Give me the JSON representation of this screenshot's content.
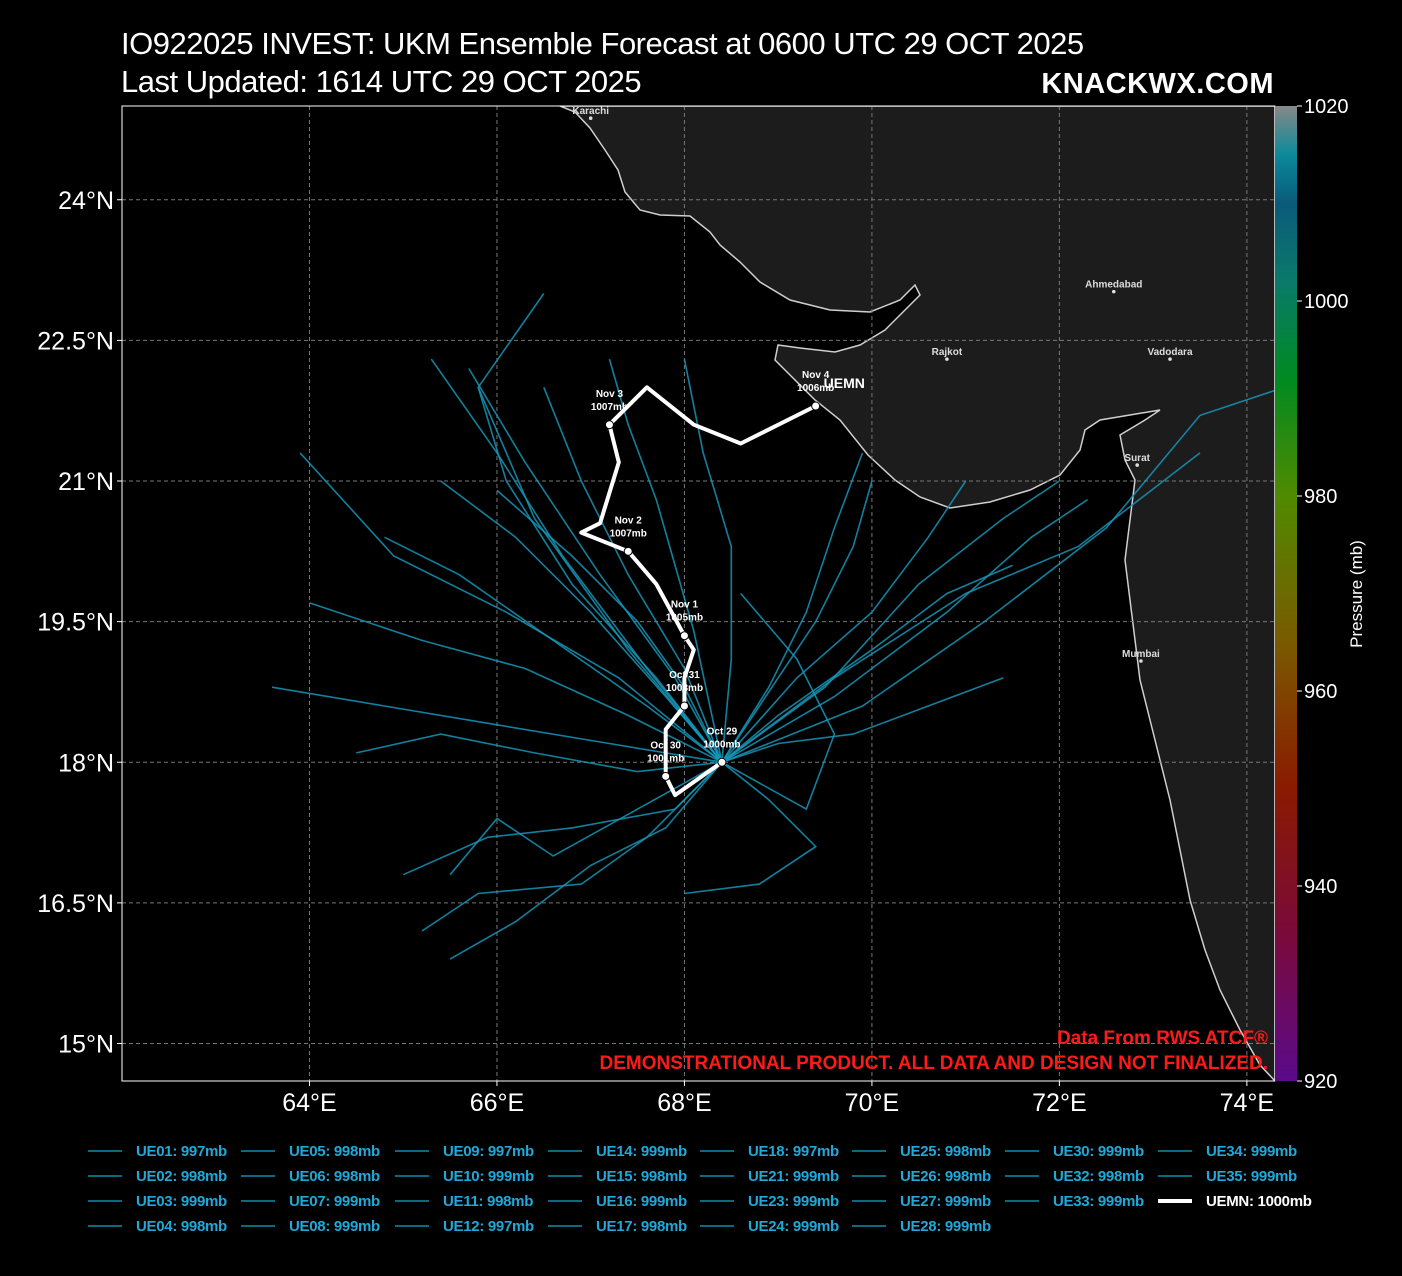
{
  "header": {
    "title": "IO922025 INVEST: UKM Ensemble Forecast at 0600 UTC 29 OCT 2025",
    "subtitle": "Last Updated: 1614 UTC 29 OCT 2025",
    "brand": "KNACKWX.COM"
  },
  "map": {
    "lon_range": [
      62.0,
      74.3
    ],
    "lat_range": [
      14.6,
      25.0
    ],
    "lat_ticks": [
      {
        "value": 24.0,
        "label": "24°N"
      },
      {
        "value": 22.5,
        "label": "22.5°N"
      },
      {
        "value": 21.0,
        "label": "21°N"
      },
      {
        "value": 19.5,
        "label": "19.5°N"
      },
      {
        "value": 18.0,
        "label": "18°N"
      },
      {
        "value": 16.5,
        "label": "16.5°N"
      },
      {
        "value": 15.0,
        "label": "15°N"
      }
    ],
    "lon_ticks": [
      {
        "value": 64,
        "label": "64°E"
      },
      {
        "value": 66,
        "label": "66°E"
      },
      {
        "value": 68,
        "label": "68°E"
      },
      {
        "value": 70,
        "label": "70°E"
      },
      {
        "value": 72,
        "label": "72°E"
      },
      {
        "value": 74,
        "label": "74°E"
      }
    ],
    "cities": [
      {
        "name": "Karachi",
        "lon": 67.0,
        "lat": 24.87
      },
      {
        "name": "Ahmedabad",
        "lon": 72.58,
        "lat": 23.02
      },
      {
        "name": "Rajkot",
        "lon": 70.8,
        "lat": 22.3
      },
      {
        "name": "Vadodara",
        "lon": 73.18,
        "lat": 22.3
      },
      {
        "name": "Surat",
        "lon": 72.83,
        "lat": 21.17
      },
      {
        "name": "Mumbai",
        "lon": 72.87,
        "lat": 19.08
      }
    ],
    "land_color": "#1c1c1c",
    "coast_color": "#cfcfcf",
    "grid_color": "#777777"
  },
  "colorbar": {
    "label": "Pressure (mb)",
    "min": 920,
    "max": 1020,
    "ticks": [
      {
        "value": 1020,
        "label": "1020"
      },
      {
        "value": 1000,
        "label": "1000"
      },
      {
        "value": 980,
        "label": "980"
      },
      {
        "value": 960,
        "label": "960"
      },
      {
        "value": 940,
        "label": "940"
      },
      {
        "value": 920,
        "label": "920"
      }
    ],
    "stops": [
      {
        "at": 0.0,
        "color": "#5a0a8a"
      },
      {
        "at": 0.15,
        "color": "#7a0a3a"
      },
      {
        "at": 0.3,
        "color": "#8a1a00"
      },
      {
        "at": 0.45,
        "color": "#7a5a00"
      },
      {
        "at": 0.6,
        "color": "#508a00"
      },
      {
        "at": 0.72,
        "color": "#008a20"
      },
      {
        "at": 0.82,
        "color": "#0a7a6a"
      },
      {
        "at": 0.9,
        "color": "#0a5a7a"
      },
      {
        "at": 0.95,
        "color": "#0a8a9a"
      },
      {
        "at": 1.0,
        "color": "#888888"
      }
    ]
  },
  "chart_data": {
    "type": "map-tracks",
    "mean_track": {
      "name": "UEMN",
      "points": [
        {
          "lon": 68.4,
          "lat": 18.0,
          "label": "Oct 29",
          "pressure": "1000mb"
        },
        {
          "lon": 67.9,
          "lat": 17.65
        },
        {
          "lon": 67.8,
          "lat": 17.85,
          "label": "Oct 30",
          "pressure": "1001mb"
        },
        {
          "lon": 67.8,
          "lat": 18.35
        },
        {
          "lon": 68.0,
          "lat": 18.6,
          "label": "Oct 31",
          "pressure": "1003mb"
        },
        {
          "lon": 68.0,
          "lat": 18.9
        },
        {
          "lon": 68.1,
          "lat": 19.2
        },
        {
          "lon": 68.0,
          "lat": 19.35,
          "label": "Nov 1",
          "pressure": "1005mb"
        },
        {
          "lon": 67.7,
          "lat": 19.9
        },
        {
          "lon": 67.4,
          "lat": 20.25,
          "label": "Nov 2",
          "pressure": "1007mb"
        },
        {
          "lon": 66.9,
          "lat": 20.45
        },
        {
          "lon": 67.1,
          "lat": 20.55
        },
        {
          "lon": 67.3,
          "lat": 21.2
        },
        {
          "lon": 67.2,
          "lat": 21.6,
          "label": "Nov 3",
          "pressure": "1007mb"
        },
        {
          "lon": 67.6,
          "lat": 22.0
        },
        {
          "lon": 68.1,
          "lat": 21.6
        },
        {
          "lon": 68.6,
          "lat": 21.4
        },
        {
          "lon": 69.4,
          "lat": 21.8,
          "label": "Nov 4",
          "pressure": "1006mb"
        }
      ],
      "end_label": "UEMN"
    },
    "members": [
      {
        "name": "UE01",
        "pressure": "997mb",
        "points": [
          [
            68.4,
            18.0
          ],
          [
            67.6,
            17.2
          ],
          [
            66.9,
            16.7
          ],
          [
            65.8,
            16.6
          ],
          [
            65.2,
            16.2
          ]
        ]
      },
      {
        "name": "UE02",
        "pressure": "998mb",
        "points": [
          [
            68.4,
            18.0
          ],
          [
            67.5,
            17.5
          ],
          [
            66.6,
            17.0
          ],
          [
            66.0,
            17.4
          ],
          [
            65.5,
            16.8
          ]
        ]
      },
      {
        "name": "UE03",
        "pressure": "999mb",
        "points": [
          [
            68.4,
            18.0
          ],
          [
            69.0,
            18.5
          ],
          [
            70.0,
            19.2
          ],
          [
            70.8,
            19.8
          ],
          [
            71.5,
            20.1
          ]
        ]
      },
      {
        "name": "UE04",
        "pressure": "998mb",
        "points": [
          [
            68.4,
            18.0
          ],
          [
            67.9,
            17.5
          ],
          [
            66.8,
            17.3
          ],
          [
            65.9,
            17.2
          ],
          [
            65.0,
            16.8
          ]
        ]
      },
      {
        "name": "UE05",
        "pressure": "998mb",
        "points": [
          [
            68.4,
            18.0
          ],
          [
            69.2,
            18.9
          ],
          [
            70.0,
            19.6
          ],
          [
            70.6,
            20.4
          ],
          [
            71.0,
            21.0
          ]
        ]
      },
      {
        "name": "UE06",
        "pressure": "998mb",
        "points": [
          [
            68.4,
            18.0
          ],
          [
            67.8,
            17.3
          ],
          [
            67.0,
            16.9
          ],
          [
            66.2,
            16.3
          ],
          [
            65.5,
            15.9
          ]
        ]
      },
      {
        "name": "UE07",
        "pressure": "999mb",
        "points": [
          [
            68.4,
            18.0
          ],
          [
            68.0,
            18.8
          ],
          [
            67.5,
            19.5
          ],
          [
            66.8,
            20.2
          ],
          [
            66.0,
            20.9
          ]
        ]
      },
      {
        "name": "UE08",
        "pressure": "999mb",
        "points": [
          [
            68.4,
            18.0
          ],
          [
            69.5,
            18.8
          ],
          [
            70.5,
            19.9
          ],
          [
            71.4,
            20.6
          ],
          [
            72.0,
            21.0
          ]
        ]
      },
      {
        "name": "UE09",
        "pressure": "997mb",
        "points": [
          [
            68.4,
            18.0
          ],
          [
            67.4,
            18.5
          ],
          [
            66.3,
            19.0
          ],
          [
            65.2,
            19.3
          ],
          [
            64.0,
            19.7
          ]
        ]
      },
      {
        "name": "UE10",
        "pressure": "999mb",
        "points": [
          [
            68.4,
            18.0
          ],
          [
            68.8,
            18.6
          ],
          [
            69.4,
            19.5
          ],
          [
            69.8,
            20.3
          ],
          [
            70.0,
            21.0
          ]
        ]
      },
      {
        "name": "UE11",
        "pressure": "998mb",
        "points": [
          [
            68.4,
            18.0
          ],
          [
            67.6,
            18.6
          ],
          [
            66.6,
            19.3
          ],
          [
            65.6,
            20.0
          ],
          [
            64.8,
            20.4
          ]
        ]
      },
      {
        "name": "UE12",
        "pressure": "997mb",
        "points": [
          [
            68.4,
            18.0
          ],
          [
            67.8,
            18.7
          ],
          [
            67.0,
            19.6
          ],
          [
            66.2,
            20.4
          ],
          [
            65.4,
            21.0
          ]
        ]
      },
      {
        "name": "UE14",
        "pressure": "999mb",
        "points": [
          [
            68.4,
            18.0
          ],
          [
            68.9,
            17.6
          ],
          [
            69.4,
            17.1
          ],
          [
            68.8,
            16.7
          ],
          [
            68.0,
            16.6
          ]
        ]
      },
      {
        "name": "UE15",
        "pressure": "998mb",
        "points": [
          [
            68.4,
            18.0
          ],
          [
            67.2,
            18.2
          ],
          [
            66.0,
            18.4
          ],
          [
            64.8,
            18.6
          ],
          [
            63.6,
            18.8
          ]
        ]
      },
      {
        "name": "UE16",
        "pressure": "999mb",
        "points": [
          [
            68.4,
            18.0
          ],
          [
            68.0,
            19.0
          ],
          [
            67.4,
            20.0
          ],
          [
            66.9,
            21.0
          ],
          [
            66.5,
            22.0
          ]
        ]
      },
      {
        "name": "UE17",
        "pressure": "998mb",
        "points": [
          [
            68.4,
            18.0
          ],
          [
            69.0,
            18.2
          ],
          [
            69.8,
            18.3
          ],
          [
            70.6,
            18.6
          ],
          [
            71.4,
            18.9
          ]
        ]
      },
      {
        "name": "UE18",
        "pressure": "997mb",
        "points": [
          [
            68.4,
            18.0
          ],
          [
            67.3,
            18.9
          ],
          [
            66.1,
            19.6
          ],
          [
            64.9,
            20.2
          ],
          [
            63.9,
            21.3
          ]
        ]
      },
      {
        "name": "UE21",
        "pressure": "999mb",
        "points": [
          [
            68.4,
            18.0
          ],
          [
            69.6,
            18.9
          ],
          [
            71.0,
            19.8
          ],
          [
            72.2,
            20.3
          ],
          [
            73.5,
            21.3
          ]
        ]
      },
      {
        "name": "UE23",
        "pressure": "999mb",
        "points": [
          [
            68.4,
            18.0
          ],
          [
            67.7,
            18.9
          ],
          [
            66.8,
            19.9
          ],
          [
            66.1,
            21.0
          ],
          [
            65.8,
            22.0
          ]
        ]
      },
      {
        "name": "UE24",
        "pressure": "999mb",
        "points": [
          [
            68.4,
            18.0
          ],
          [
            68.5,
            19.1
          ],
          [
            68.5,
            20.3
          ],
          [
            68.2,
            21.3
          ],
          [
            68.0,
            22.3
          ]
        ]
      },
      {
        "name": "UE25",
        "pressure": "998mb",
        "points": [
          [
            68.4,
            18.0
          ],
          [
            67.5,
            17.9
          ],
          [
            66.4,
            18.1
          ],
          [
            65.4,
            18.3
          ],
          [
            64.5,
            18.1
          ]
        ]
      },
      {
        "name": "UE26",
        "pressure": "998mb",
        "points": [
          [
            68.4,
            18.0
          ],
          [
            69.6,
            18.7
          ],
          [
            70.8,
            19.6
          ],
          [
            71.7,
            20.4
          ],
          [
            72.3,
            20.8
          ]
        ]
      },
      {
        "name": "UE27",
        "pressure": "999mb",
        "points": [
          [
            68.4,
            18.0
          ],
          [
            67.9,
            18.9
          ],
          [
            67.1,
            20.0
          ],
          [
            66.3,
            21.2
          ],
          [
            65.7,
            22.2
          ]
        ]
      },
      {
        "name": "UE28",
        "pressure": "999mb",
        "points": [
          [
            68.4,
            18.0
          ],
          [
            68.9,
            18.8
          ],
          [
            69.3,
            19.6
          ],
          [
            69.6,
            20.5
          ],
          [
            69.9,
            21.3
          ]
        ]
      },
      {
        "name": "UE30",
        "pressure": "999mb",
        "points": [
          [
            68.4,
            18.0
          ],
          [
            67.6,
            19.0
          ],
          [
            66.7,
            20.2
          ],
          [
            66.0,
            21.3
          ],
          [
            65.3,
            22.3
          ]
        ]
      },
      {
        "name": "UE32",
        "pressure": "998mb",
        "points": [
          [
            68.4,
            18.0
          ],
          [
            67.4,
            19.2
          ],
          [
            66.4,
            20.6
          ],
          [
            65.8,
            22.0
          ],
          [
            66.5,
            23.0
          ]
        ]
      },
      {
        "name": "UE33",
        "pressure": "999mb",
        "points": [
          [
            68.4,
            18.0
          ],
          [
            68.1,
            19.4
          ],
          [
            67.7,
            20.8
          ],
          [
            67.4,
            21.6
          ],
          [
            67.2,
            22.3
          ]
        ]
      },
      {
        "name": "UE34",
        "pressure": "999mb",
        "points": [
          [
            68.4,
            18.0
          ],
          [
            69.9,
            18.6
          ],
          [
            71.2,
            19.5
          ],
          [
            72.5,
            20.5
          ],
          [
            73.5,
            21.7
          ],
          [
            74.4,
            22.0
          ]
        ]
      },
      {
        "name": "UE35",
        "pressure": "999mb",
        "points": [
          [
            68.4,
            18.0
          ],
          [
            69.3,
            17.5
          ],
          [
            69.6,
            18.3
          ],
          [
            69.2,
            19.1
          ],
          [
            68.6,
            19.8
          ]
        ]
      }
    ]
  },
  "credits": {
    "source": "Data From RWS ATCF®",
    "disclaimer": "DEMONSTRATIONAL PRODUCT. ALL DATA AND DESIGN NOT FINALIZED."
  },
  "legend": {
    "items": [
      {
        "label": "UE01: 997mb"
      },
      {
        "label": "UE02: 998mb"
      },
      {
        "label": "UE03: 999mb"
      },
      {
        "label": "UE04: 998mb"
      },
      {
        "label": "UE05: 998mb"
      },
      {
        "label": "UE06: 998mb"
      },
      {
        "label": "UE07: 999mb"
      },
      {
        "label": "UE08: 999mb"
      },
      {
        "label": "UE09: 997mb"
      },
      {
        "label": "UE10: 999mb"
      },
      {
        "label": "UE11: 998mb"
      },
      {
        "label": "UE12: 997mb"
      },
      {
        "label": "UE14: 999mb"
      },
      {
        "label": "UE15: 998mb"
      },
      {
        "label": "UE16: 999mb"
      },
      {
        "label": "UE17: 998mb"
      },
      {
        "label": "UE18: 997mb"
      },
      {
        "label": "UE21: 999mb"
      },
      {
        "label": "UE23: 999mb"
      },
      {
        "label": "UE24: 999mb"
      },
      {
        "label": "UE25: 998mb"
      },
      {
        "label": "UE26: 998mb"
      },
      {
        "label": "UE27: 999mb"
      },
      {
        "label": "UE28: 999mb"
      },
      {
        "label": "UE30: 999mb"
      },
      {
        "label": "UE32: 998mb"
      },
      {
        "label": "UE33: 999mb"
      },
      {
        "label": "UE34: 999mb"
      },
      {
        "label": "UE35: 999mb"
      },
      {
        "label": "UEMN: 1000mb",
        "mean": true
      }
    ],
    "columns": [
      [
        0,
        1,
        2,
        3
      ],
      [
        4,
        5,
        6,
        7
      ],
      [
        8,
        9,
        10,
        11
      ],
      [
        12,
        13,
        14,
        15
      ],
      [
        16,
        17,
        18,
        19
      ],
      [
        20,
        21,
        22,
        23
      ],
      [
        24,
        25,
        26
      ],
      [
        27,
        28,
        29
      ]
    ]
  }
}
